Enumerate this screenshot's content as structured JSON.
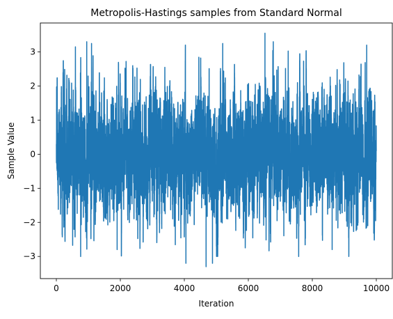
{
  "chart_data": {
    "type": "line",
    "title": "Metropolis-Hastings samples from Standard Normal",
    "xlabel": "Iteration",
    "ylabel": "Sample Value",
    "xlim": [
      -500,
      10500
    ],
    "ylim": [
      -3.65,
      3.85
    ],
    "x_ticks": [
      0,
      2000,
      4000,
      6000,
      8000,
      10000
    ],
    "x_tick_labels": [
      "0",
      "2000",
      "4000",
      "6000",
      "8000",
      "10000"
    ],
    "y_ticks": [
      -3,
      -2,
      -1,
      0,
      1,
      2,
      3
    ],
    "y_tick_labels": [
      "−3",
      "−2",
      "−1",
      "0",
      "1",
      "2",
      "3"
    ],
    "grid": false,
    "legend": "none",
    "series": [
      {
        "color": "#1f77b4",
        "n_points": 10000,
        "start_value": 0.3,
        "proposal_step": 1.0,
        "extremes": [
          {
            "x": 760,
            "y": -3.0
          },
          {
            "x": 950,
            "y": 3.3
          },
          {
            "x": 1100,
            "y": 3.25
          },
          {
            "x": 1900,
            "y": -2.8
          },
          {
            "x": 4050,
            "y": 3.3
          },
          {
            "x": 4050,
            "y": -3.2
          },
          {
            "x": 4680,
            "y": -3.3
          },
          {
            "x": 4880,
            "y": -3.2
          },
          {
            "x": 5200,
            "y": 3.25
          },
          {
            "x": 6520,
            "y": 3.55
          },
          {
            "x": 6780,
            "y": 3.3
          },
          {
            "x": 8620,
            "y": -2.8
          },
          {
            "x": 9700,
            "y": 3.2
          }
        ]
      }
    ]
  }
}
